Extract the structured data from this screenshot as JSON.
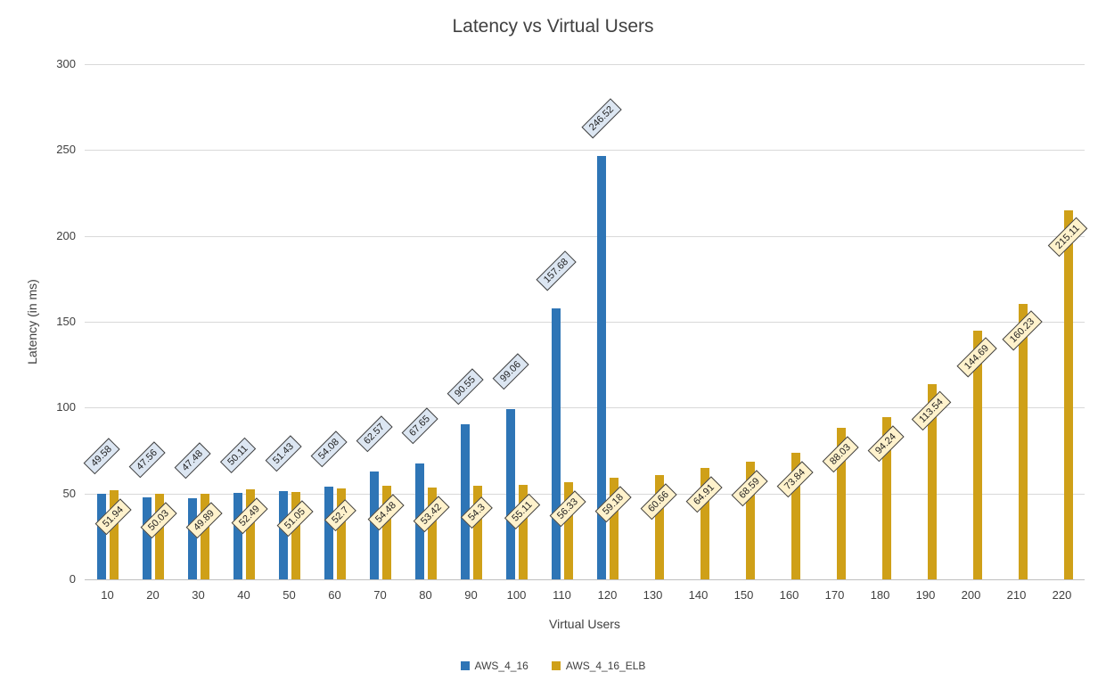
{
  "chart_data": {
    "type": "bar",
    "title": "Latency vs Virtual Users",
    "xlabel": "Virtual Users",
    "ylabel": "Latency (in ms)",
    "ylim": [
      0,
      300
    ],
    "yticks": [
      0,
      50,
      100,
      150,
      200,
      250,
      300
    ],
    "grid": true,
    "legend_position": "bottom",
    "categories": [
      10,
      20,
      30,
      40,
      50,
      60,
      70,
      80,
      90,
      100,
      110,
      120,
      130,
      140,
      150,
      160,
      170,
      180,
      190,
      200,
      210,
      220
    ],
    "series": [
      {
        "name": "AWS_4_16",
        "color": "#2e75b6",
        "label_bg": "#dce6f2",
        "values": [
          49.58,
          47.56,
          47.48,
          50.11,
          51.43,
          54.08,
          62.57,
          67.65,
          90.55,
          99.06,
          157.68,
          246.52
        ]
      },
      {
        "name": "AWS_4_16_ELB",
        "color": "#cfa018",
        "label_bg": "#fff2cc",
        "values": [
          51.94,
          50.03,
          49.89,
          52.49,
          51.05,
          52.7,
          54.48,
          53.42,
          54.3,
          55.11,
          56.33,
          59.18,
          60.66,
          64.91,
          68.59,
          73.84,
          88.03,
          94.24,
          113.54,
          144.69,
          160.23,
          215.11
        ]
      }
    ]
  }
}
